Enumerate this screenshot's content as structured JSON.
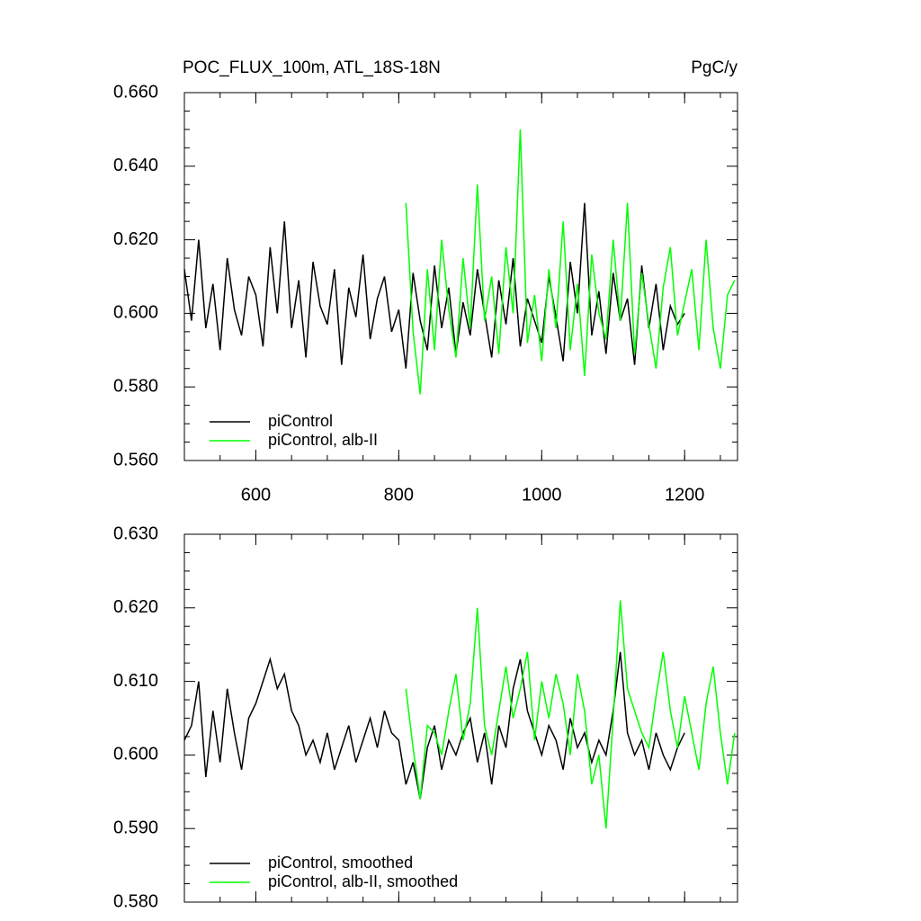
{
  "chart_data": [
    {
      "type": "line",
      "title": "POC_FLUX_100m, ATL_18S-18N",
      "units": "PgC/y",
      "xlim": [
        500,
        1274
      ],
      "xticks": [
        600,
        800,
        1000,
        1200
      ],
      "ylim": [
        0.56,
        0.66
      ],
      "yticks": [
        {
          "value": 0.56,
          "label": "0.560"
        },
        {
          "value": 0.58,
          "label": "0.580"
        },
        {
          "value": 0.6,
          "label": "0.600"
        },
        {
          "value": 0.62,
          "label": "0.620"
        },
        {
          "value": 0.64,
          "label": "0.640"
        },
        {
          "value": 0.66,
          "label": "0.660"
        }
      ],
      "legend": "lower left",
      "series": [
        {
          "name": "piControl",
          "color": "#000000",
          "x": [
            500,
            510,
            520,
            530,
            540,
            550,
            560,
            570,
            580,
            590,
            600,
            610,
            620,
            630,
            640,
            650,
            660,
            670,
            680,
            690,
            700,
            710,
            720,
            730,
            740,
            750,
            760,
            770,
            780,
            790,
            800,
            810,
            820,
            830,
            840,
            850,
            860,
            870,
            880,
            890,
            900,
            910,
            920,
            930,
            940,
            950,
            960,
            970,
            980,
            990,
            1000,
            1010,
            1020,
            1030,
            1040,
            1050,
            1060,
            1070,
            1080,
            1090,
            1100,
            1110,
            1120,
            1130,
            1140,
            1150,
            1160,
            1170,
            1180,
            1190,
            1200
          ],
          "values": [
            0.612,
            0.598,
            0.62,
            0.596,
            0.608,
            0.59,
            0.615,
            0.601,
            0.594,
            0.61,
            0.605,
            0.591,
            0.618,
            0.6,
            0.625,
            0.596,
            0.609,
            0.588,
            0.614,
            0.602,
            0.597,
            0.612,
            0.586,
            0.607,
            0.599,
            0.616,
            0.593,
            0.604,
            0.61,
            0.595,
            0.601,
            0.585,
            0.611,
            0.598,
            0.59,
            0.613,
            0.596,
            0.607,
            0.589,
            0.603,
            0.594,
            0.612,
            0.6,
            0.588,
            0.609,
            0.597,
            0.615,
            0.591,
            0.604,
            0.598,
            0.592,
            0.61,
            0.599,
            0.587,
            0.614,
            0.6,
            0.63,
            0.594,
            0.606,
            0.589,
            0.611,
            0.598,
            0.604,
            0.586,
            0.613,
            0.596,
            0.608,
            0.59,
            0.602,
            0.597,
            0.6
          ]
        },
        {
          "name": "piControl, alb-II",
          "color": "#00ff00",
          "x": [
            810,
            820,
            830,
            840,
            850,
            860,
            870,
            880,
            890,
            900,
            910,
            920,
            930,
            940,
            950,
            960,
            970,
            980,
            990,
            1000,
            1010,
            1020,
            1030,
            1040,
            1050,
            1060,
            1070,
            1080,
            1090,
            1100,
            1110,
            1120,
            1130,
            1140,
            1150,
            1160,
            1170,
            1180,
            1190,
            1200,
            1210,
            1220,
            1230,
            1240,
            1250,
            1260,
            1270
          ],
          "values": [
            0.63,
            0.595,
            0.578,
            0.612,
            0.59,
            0.62,
            0.601,
            0.588,
            0.615,
            0.596,
            0.635,
            0.598,
            0.61,
            0.589,
            0.618,
            0.6,
            0.65,
            0.592,
            0.605,
            0.587,
            0.612,
            0.596,
            0.625,
            0.59,
            0.608,
            0.583,
            0.616,
            0.6,
            0.593,
            0.62,
            0.598,
            0.63,
            0.589,
            0.611,
            0.597,
            0.585,
            0.607,
            0.618,
            0.594,
            0.603,
            0.612,
            0.59,
            0.62,
            0.596,
            0.585,
            0.605,
            0.609
          ]
        }
      ]
    },
    {
      "type": "line",
      "xlim": [
        500,
        1274
      ],
      "xticks": [
        600,
        800,
        1000,
        1200
      ],
      "ylim": [
        0.58,
        0.63
      ],
      "yticks": [
        {
          "value": 0.58,
          "label": "0.580"
        },
        {
          "value": 0.59,
          "label": "0.590"
        },
        {
          "value": 0.6,
          "label": "0.600"
        },
        {
          "value": 0.61,
          "label": "0.610"
        },
        {
          "value": 0.62,
          "label": "0.620"
        },
        {
          "value": 0.63,
          "label": "0.630"
        }
      ],
      "legend": "lower left",
      "series": [
        {
          "name": "piControl, smoothed",
          "color": "#000000",
          "x": [
            500,
            510,
            520,
            530,
            540,
            550,
            560,
            570,
            580,
            590,
            600,
            610,
            620,
            630,
            640,
            650,
            660,
            670,
            680,
            690,
            700,
            710,
            720,
            730,
            740,
            750,
            760,
            770,
            780,
            790,
            800,
            810,
            820,
            830,
            840,
            850,
            860,
            870,
            880,
            890,
            900,
            910,
            920,
            930,
            940,
            950,
            960,
            970,
            980,
            990,
            1000,
            1010,
            1020,
            1030,
            1040,
            1050,
            1060,
            1070,
            1080,
            1090,
            1100,
            1110,
            1120,
            1130,
            1140,
            1150,
            1160,
            1170,
            1180,
            1190,
            1200
          ],
          "values": [
            0.602,
            0.604,
            0.61,
            0.597,
            0.606,
            0.599,
            0.609,
            0.603,
            0.598,
            0.605,
            0.607,
            0.61,
            0.613,
            0.609,
            0.611,
            0.606,
            0.604,
            0.6,
            0.602,
            0.599,
            0.603,
            0.598,
            0.601,
            0.604,
            0.599,
            0.602,
            0.605,
            0.601,
            0.606,
            0.603,
            0.602,
            0.596,
            0.599,
            0.594,
            0.601,
            0.604,
            0.598,
            0.602,
            0.6,
            0.603,
            0.605,
            0.599,
            0.603,
            0.596,
            0.604,
            0.601,
            0.609,
            0.613,
            0.606,
            0.603,
            0.6,
            0.604,
            0.602,
            0.598,
            0.605,
            0.601,
            0.603,
            0.599,
            0.602,
            0.6,
            0.606,
            0.614,
            0.603,
            0.6,
            0.602,
            0.598,
            0.603,
            0.6,
            0.598,
            0.601,
            0.603
          ]
        },
        {
          "name": "piControl, alb-II, smoothed",
          "color": "#00ff00",
          "x": [
            810,
            820,
            830,
            840,
            850,
            860,
            870,
            880,
            890,
            900,
            910,
            920,
            930,
            940,
            950,
            960,
            970,
            980,
            990,
            1000,
            1010,
            1020,
            1030,
            1040,
            1050,
            1060,
            1070,
            1080,
            1090,
            1100,
            1110,
            1120,
            1130,
            1140,
            1150,
            1160,
            1170,
            1180,
            1190,
            1200,
            1210,
            1220,
            1230,
            1240,
            1250,
            1260,
            1270
          ],
          "values": [
            0.609,
            0.601,
            0.594,
            0.604,
            0.603,
            0.6,
            0.606,
            0.611,
            0.602,
            0.607,
            0.62,
            0.604,
            0.6,
            0.606,
            0.612,
            0.605,
            0.609,
            0.614,
            0.602,
            0.61,
            0.605,
            0.611,
            0.607,
            0.6,
            0.611,
            0.606,
            0.596,
            0.6,
            0.59,
            0.605,
            0.621,
            0.609,
            0.606,
            0.603,
            0.601,
            0.608,
            0.614,
            0.606,
            0.601,
            0.608,
            0.603,
            0.598,
            0.607,
            0.612,
            0.603,
            0.596,
            0.603
          ]
        }
      ]
    }
  ]
}
